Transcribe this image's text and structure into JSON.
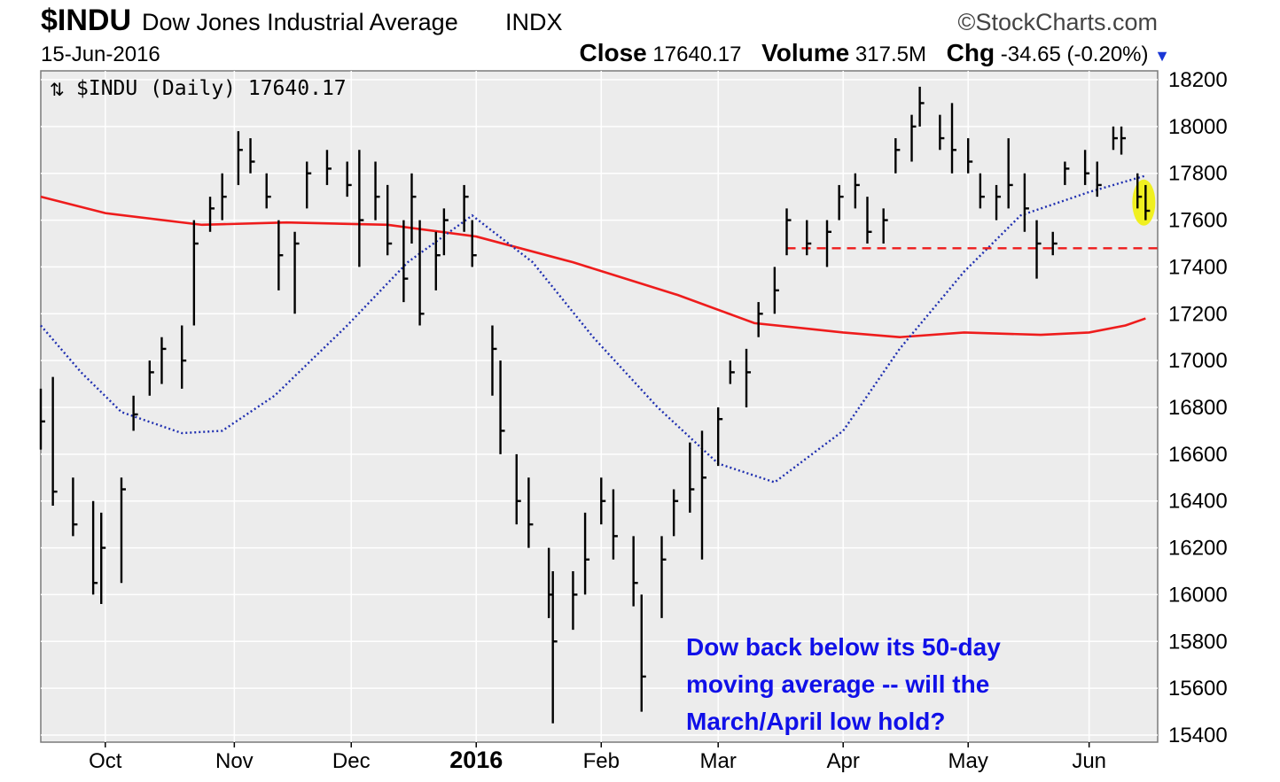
{
  "header": {
    "symbol": "$INDU",
    "name": "Dow Jones Industrial Average",
    "exchange": "INDX",
    "brand": "©StockCharts.com",
    "date": "15-Jun-2016",
    "close_label": "Close",
    "close_value": "17640.17",
    "volume_label": "Volume",
    "volume_value": "317.5M",
    "chg_label": "Chg",
    "chg_value": "-34.65 (-0.20%)"
  },
  "legend": {
    "text": "$INDU (Daily) 17640.17"
  },
  "annotation": {
    "lines": [
      "Dow back below its 50-day",
      "moving average -- will the",
      "March/April low hold?"
    ]
  },
  "colors": {
    "plot_bg": "#ececec",
    "price_bars": "#000000",
    "ma200": "#ee1c1c",
    "ma50": "#1f2fb0",
    "support": "#ee1c1c",
    "highlight": "#f0f020",
    "annotation": "#1010e8"
  },
  "chart_data": {
    "type": "line",
    "title": "$INDU Dow Jones Industrial Average INDX",
    "ylim": [
      15400,
      18200
    ],
    "y_ticks": [
      15400,
      15600,
      15800,
      16000,
      16200,
      16400,
      16600,
      16800,
      17000,
      17200,
      17400,
      17600,
      17800,
      18000,
      18200
    ],
    "x_ticks": [
      {
        "label": "Oct",
        "date": "2015-10-01"
      },
      {
        "label": "Nov",
        "date": "2015-11-02"
      },
      {
        "label": "Dec",
        "date": "2015-12-01"
      },
      {
        "label": "2016",
        "date": "2016-01-01",
        "year": true
      },
      {
        "label": "Feb",
        "date": "2016-02-01"
      },
      {
        "label": "Mar",
        "date": "2016-03-01"
      },
      {
        "label": "Apr",
        "date": "2016-04-01"
      },
      {
        "label": "May",
        "date": "2016-05-02"
      },
      {
        "label": "Jun",
        "date": "2016-06-01"
      }
    ],
    "x_range": [
      "2015-09-15",
      "2016-06-18"
    ],
    "series": [
      {
        "kind": "ohlc",
        "points": [
          {
            "date": "2015-09-15",
            "high": 16880,
            "low": 16620,
            "close": 16740
          },
          {
            "date": "2015-09-18",
            "high": 16930,
            "low": 16380,
            "close": 16440
          },
          {
            "date": "2015-09-23",
            "high": 16500,
            "low": 16250,
            "close": 16300
          },
          {
            "date": "2015-09-28",
            "high": 16400,
            "low": 16000,
            "close": 16050
          },
          {
            "date": "2015-09-30",
            "high": 16350,
            "low": 15960,
            "close": 16200
          },
          {
            "date": "2015-10-05",
            "high": 16500,
            "low": 16050,
            "close": 16450
          },
          {
            "date": "2015-10-08",
            "high": 16850,
            "low": 16700,
            "close": 16770
          },
          {
            "date": "2015-10-12",
            "high": 17000,
            "low": 16850,
            "close": 16950
          },
          {
            "date": "2015-10-15",
            "high": 17100,
            "low": 16900,
            "close": 17050
          },
          {
            "date": "2015-10-20",
            "high": 17150,
            "low": 16880,
            "close": 17000
          },
          {
            "date": "2015-10-23",
            "high": 17600,
            "low": 17150,
            "close": 17500
          },
          {
            "date": "2015-10-27",
            "high": 17700,
            "low": 17550,
            "close": 17650
          },
          {
            "date": "2015-10-30",
            "high": 17800,
            "low": 17600,
            "close": 17700
          },
          {
            "date": "2015-11-03",
            "high": 17980,
            "low": 17750,
            "close": 17900
          },
          {
            "date": "2015-11-06",
            "high": 17950,
            "low": 17800,
            "close": 17850
          },
          {
            "date": "2015-11-10",
            "high": 17800,
            "low": 17650,
            "close": 17700
          },
          {
            "date": "2015-11-13",
            "high": 17600,
            "low": 17300,
            "close": 17450
          },
          {
            "date": "2015-11-17",
            "high": 17550,
            "low": 17200,
            "close": 17500
          },
          {
            "date": "2015-11-20",
            "high": 17850,
            "low": 17650,
            "close": 17800
          },
          {
            "date": "2015-11-25",
            "high": 17900,
            "low": 17750,
            "close": 17820
          },
          {
            "date": "2015-11-30",
            "high": 17850,
            "low": 17700,
            "close": 17750
          },
          {
            "date": "2015-12-03",
            "high": 17900,
            "low": 17400,
            "close": 17600
          },
          {
            "date": "2015-12-07",
            "high": 17850,
            "low": 17600,
            "close": 17700
          },
          {
            "date": "2015-12-10",
            "high": 17750,
            "low": 17450,
            "close": 17500
          },
          {
            "date": "2015-12-14",
            "high": 17600,
            "low": 17250,
            "close": 17350
          },
          {
            "date": "2015-12-16",
            "high": 17800,
            "low": 17500,
            "close": 17700
          },
          {
            "date": "2015-12-18",
            "high": 17600,
            "low": 17150,
            "close": 17200
          },
          {
            "date": "2015-12-22",
            "high": 17550,
            "low": 17300,
            "close": 17450
          },
          {
            "date": "2015-12-24",
            "high": 17650,
            "low": 17450,
            "close": 17600
          },
          {
            "date": "2015-12-29",
            "high": 17750,
            "low": 17550,
            "close": 17700
          },
          {
            "date": "2015-12-31",
            "high": 17600,
            "low": 17400,
            "close": 17450
          },
          {
            "date": "2016-01-05",
            "high": 17150,
            "low": 16850,
            "close": 17050
          },
          {
            "date": "2016-01-07",
            "high": 17000,
            "low": 16600,
            "close": 16700
          },
          {
            "date": "2016-01-11",
            "high": 16600,
            "low": 16300,
            "close": 16400
          },
          {
            "date": "2016-01-14",
            "high": 16500,
            "low": 16200,
            "close": 16300
          },
          {
            "date": "2016-01-19",
            "high": 16200,
            "low": 15900,
            "close": 16000
          },
          {
            "date": "2016-01-20",
            "high": 16100,
            "low": 15450,
            "close": 15800
          },
          {
            "date": "2016-01-25",
            "high": 16100,
            "low": 15850,
            "close": 16000
          },
          {
            "date": "2016-01-28",
            "high": 16350,
            "low": 16000,
            "close": 16150
          },
          {
            "date": "2016-02-01",
            "high": 16500,
            "low": 16300,
            "close": 16400
          },
          {
            "date": "2016-02-04",
            "high": 16450,
            "low": 16150,
            "close": 16250
          },
          {
            "date": "2016-02-09",
            "high": 16250,
            "low": 15950,
            "close": 16050
          },
          {
            "date": "2016-02-11",
            "high": 16000,
            "low": 15500,
            "close": 15650
          },
          {
            "date": "2016-02-16",
            "high": 16250,
            "low": 15900,
            "close": 16150
          },
          {
            "date": "2016-02-19",
            "high": 16450,
            "low": 16250,
            "close": 16400
          },
          {
            "date": "2016-02-23",
            "high": 16650,
            "low": 16350,
            "close": 16450
          },
          {
            "date": "2016-02-26",
            "high": 16700,
            "low": 16150,
            "close": 16500
          },
          {
            "date": "2016-03-01",
            "high": 16800,
            "low": 16550,
            "close": 16750
          },
          {
            "date": "2016-03-04",
            "high": 17000,
            "low": 16900,
            "close": 16950
          },
          {
            "date": "2016-03-08",
            "high": 17050,
            "low": 16800,
            "close": 16950
          },
          {
            "date": "2016-03-11",
            "high": 17250,
            "low": 17100,
            "close": 17200
          },
          {
            "date": "2016-03-15",
            "high": 17400,
            "low": 17200,
            "close": 17300
          },
          {
            "date": "2016-03-18",
            "high": 17650,
            "low": 17450,
            "close": 17600
          },
          {
            "date": "2016-03-23",
            "high": 17600,
            "low": 17450,
            "close": 17500
          },
          {
            "date": "2016-03-28",
            "high": 17600,
            "low": 17400,
            "close": 17550
          },
          {
            "date": "2016-03-31",
            "high": 17750,
            "low": 17600,
            "close": 17700
          },
          {
            "date": "2016-04-04",
            "high": 17800,
            "low": 17650,
            "close": 17750
          },
          {
            "date": "2016-04-07",
            "high": 17700,
            "low": 17500,
            "close": 17550
          },
          {
            "date": "2016-04-11",
            "high": 17650,
            "low": 17500,
            "close": 17600
          },
          {
            "date": "2016-04-14",
            "high": 17950,
            "low": 17800,
            "close": 17900
          },
          {
            "date": "2016-04-18",
            "high": 18050,
            "low": 17850,
            "close": 18000
          },
          {
            "date": "2016-04-20",
            "high": 18170,
            "low": 18000,
            "close": 18100
          },
          {
            "date": "2016-04-25",
            "high": 18050,
            "low": 17900,
            "close": 17950
          },
          {
            "date": "2016-04-28",
            "high": 18100,
            "low": 17800,
            "close": 17900
          },
          {
            "date": "2016-05-02",
            "high": 17950,
            "low": 17800,
            "close": 17850
          },
          {
            "date": "2016-05-05",
            "high": 17800,
            "low": 17650,
            "close": 17700
          },
          {
            "date": "2016-05-09",
            "high": 17750,
            "low": 17600,
            "close": 17700
          },
          {
            "date": "2016-05-12",
            "high": 17950,
            "low": 17650,
            "close": 17750
          },
          {
            "date": "2016-05-16",
            "high": 17800,
            "low": 17550,
            "close": 17650
          },
          {
            "date": "2016-05-19",
            "high": 17600,
            "low": 17350,
            "close": 17500
          },
          {
            "date": "2016-05-23",
            "high": 17550,
            "low": 17450,
            "close": 17500
          },
          {
            "date": "2016-05-26",
            "high": 17850,
            "low": 17750,
            "close": 17820
          },
          {
            "date": "2016-05-31",
            "high": 17900,
            "low": 17750,
            "close": 17800
          },
          {
            "date": "2016-06-03",
            "high": 17850,
            "low": 17700,
            "close": 17750
          },
          {
            "date": "2016-06-07",
            "high": 18000,
            "low": 17900,
            "close": 17950
          },
          {
            "date": "2016-06-09",
            "high": 18000,
            "low": 17880,
            "close": 17950
          },
          {
            "date": "2016-06-13",
            "high": 17800,
            "low": 17650,
            "close": 17700
          },
          {
            "date": "2016-06-15",
            "high": 17750,
            "low": 17600,
            "close": 17640
          }
        ]
      },
      {
        "kind": "ma200",
        "points": [
          {
            "date": "2015-09-15",
            "value": 17700
          },
          {
            "date": "2015-10-01",
            "value": 17630
          },
          {
            "date": "2015-10-25",
            "value": 17580
          },
          {
            "date": "2015-11-15",
            "value": 17590
          },
          {
            "date": "2015-12-10",
            "value": 17580
          },
          {
            "date": "2016-01-01",
            "value": 17530
          },
          {
            "date": "2016-01-25",
            "value": 17420
          },
          {
            "date": "2016-02-20",
            "value": 17280
          },
          {
            "date": "2016-03-10",
            "value": 17160
          },
          {
            "date": "2016-04-01",
            "value": 17120
          },
          {
            "date": "2016-04-15",
            "value": 17100
          },
          {
            "date": "2016-05-01",
            "value": 17120
          },
          {
            "date": "2016-05-20",
            "value": 17110
          },
          {
            "date": "2016-06-01",
            "value": 17120
          },
          {
            "date": "2016-06-10",
            "value": 17150
          },
          {
            "date": "2016-06-15",
            "value": 17180
          }
        ]
      },
      {
        "kind": "ma50",
        "points": [
          {
            "date": "2015-09-15",
            "value": 17150
          },
          {
            "date": "2015-09-25",
            "value": 16950
          },
          {
            "date": "2015-10-05",
            "value": 16780
          },
          {
            "date": "2015-10-20",
            "value": 16690
          },
          {
            "date": "2015-10-30",
            "value": 16700
          },
          {
            "date": "2015-11-12",
            "value": 16850
          },
          {
            "date": "2015-11-30",
            "value": 17150
          },
          {
            "date": "2015-12-15",
            "value": 17420
          },
          {
            "date": "2015-12-31",
            "value": 17620
          },
          {
            "date": "2016-01-15",
            "value": 17420
          },
          {
            "date": "2016-01-30",
            "value": 17100
          },
          {
            "date": "2016-02-15",
            "value": 16800
          },
          {
            "date": "2016-03-01",
            "value": 16560
          },
          {
            "date": "2016-03-15",
            "value": 16480
          },
          {
            "date": "2016-04-01",
            "value": 16700
          },
          {
            "date": "2016-04-15",
            "value": 17050
          },
          {
            "date": "2016-05-01",
            "value": 17380
          },
          {
            "date": "2016-05-15",
            "value": 17620
          },
          {
            "date": "2016-06-01",
            "value": 17720
          },
          {
            "date": "2016-06-15",
            "value": 17790
          }
        ]
      },
      {
        "kind": "support",
        "value": 17480,
        "from": "2016-03-18",
        "to": "2016-06-18"
      }
    ]
  }
}
